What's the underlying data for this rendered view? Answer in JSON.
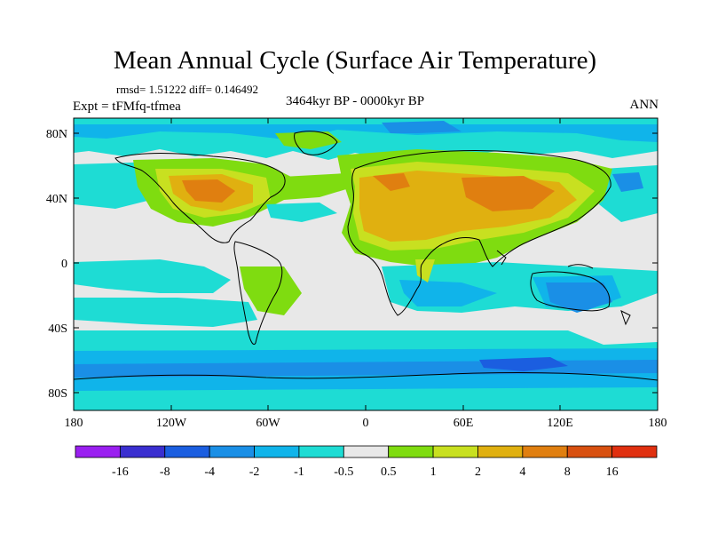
{
  "title": "Mean Annual Cycle (Surface Air Temperature)",
  "stats": "rmsd= 1.51222 diff= 0.146492",
  "experiment": "Expt = tFMfq-tfmea",
  "period": "3464kyr BP - 0000kyr BP",
  "season": "ANN",
  "lat_labels": [
    "80N",
    "40N",
    "0",
    "40S",
    "80S"
  ],
  "lon_labels": [
    "180",
    "120W",
    "60W",
    "0",
    "60E",
    "120E",
    "180"
  ],
  "colorbar": {
    "labels": [
      "-16",
      "-8",
      "-4",
      "-2",
      "-1",
      "-0.5",
      "0.5",
      "1",
      "2",
      "4",
      "8",
      "16"
    ],
    "colors": [
      "#9a1ff0",
      "#3a2fd0",
      "#1b5ee0",
      "#1a8fe6",
      "#10b4ea",
      "#1edcd4",
      "#e8e8e8",
      "#7fdc10",
      "#c8e020",
      "#e0b010",
      "#e07f10",
      "#d85010",
      "#e03010"
    ]
  }
}
